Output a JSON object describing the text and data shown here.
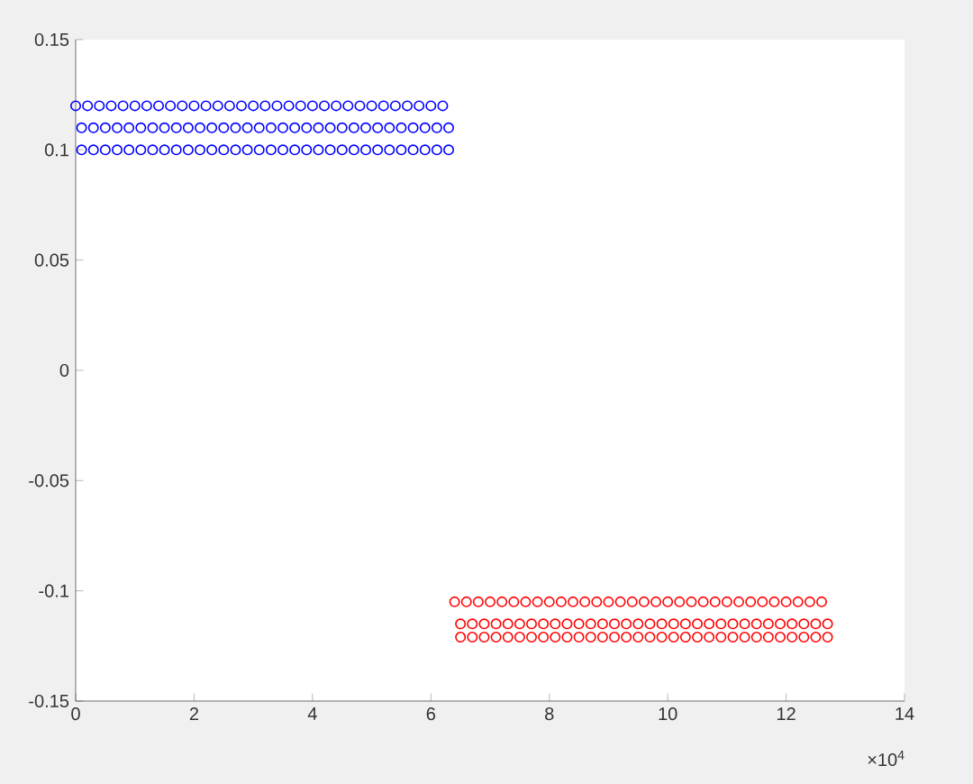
{
  "chart_data": {
    "type": "scatter",
    "marker": "circle",
    "xlim": [
      0,
      14
    ],
    "xticks": [
      0,
      2,
      4,
      6,
      8,
      10,
      12,
      14
    ],
    "ylim": [
      -0.15,
      0.15
    ],
    "yticks": [
      -0.15,
      -0.1,
      -0.05,
      0,
      0.05,
      0.1,
      0.15
    ],
    "annotations": [
      "×10$^{4}$"
    ],
    "series": [
      {
        "color": "#0000ff",
        "x": [
          0,
          0.2,
          0.4,
          0.6,
          0.8,
          1,
          1.2,
          1.4,
          1.6,
          1.8,
          2,
          2.2,
          2.4,
          2.6,
          2.8,
          3,
          3.2,
          3.4,
          3.6,
          3.8,
          4,
          4.2,
          4.4,
          4.6,
          4.8,
          5,
          5.2,
          5.4,
          5.6,
          5.8,
          6,
          6.2
        ],
        "values": [
          0.12,
          0.12,
          0.12,
          0.12,
          0.12,
          0.12,
          0.12,
          0.12,
          0.12,
          0.12,
          0.12,
          0.12,
          0.12,
          0.12,
          0.12,
          0.12,
          0.12,
          0.12,
          0.12,
          0.12,
          0.12,
          0.12,
          0.12,
          0.12,
          0.12,
          0.12,
          0.12,
          0.12,
          0.12,
          0.12,
          0.12,
          0.12
        ]
      },
      {
        "color": "#0000ff",
        "x": [
          0.1,
          0.3,
          0.5,
          0.7,
          0.9,
          1.1,
          1.3,
          1.5,
          1.7,
          1.9,
          2.1,
          2.3,
          2.5,
          2.7,
          2.9,
          3.1,
          3.3,
          3.5,
          3.7,
          3.9,
          4.1,
          4.3,
          4.5,
          4.7,
          4.9,
          5.1,
          5.3,
          5.5,
          5.7,
          5.9,
          6.1,
          6.3
        ],
        "values": [
          0.11,
          0.11,
          0.11,
          0.11,
          0.11,
          0.11,
          0.11,
          0.11,
          0.11,
          0.11,
          0.11,
          0.11,
          0.11,
          0.11,
          0.11,
          0.11,
          0.11,
          0.11,
          0.11,
          0.11,
          0.11,
          0.11,
          0.11,
          0.11,
          0.11,
          0.11,
          0.11,
          0.11,
          0.11,
          0.11,
          0.11,
          0.11
        ]
      },
      {
        "color": "#0000ff",
        "x": [
          0.1,
          0.3,
          0.5,
          0.7,
          0.9,
          1.1,
          1.3,
          1.5,
          1.7,
          1.9,
          2.1,
          2.3,
          2.5,
          2.7,
          2.9,
          3.1,
          3.3,
          3.5,
          3.7,
          3.9,
          4.1,
          4.3,
          4.5,
          4.7,
          4.9,
          5.1,
          5.3,
          5.5,
          5.7,
          5.9,
          6.1,
          6.3
        ],
        "values": [
          0.1,
          0.1,
          0.1,
          0.1,
          0.1,
          0.1,
          0.1,
          0.1,
          0.1,
          0.1,
          0.1,
          0.1,
          0.1,
          0.1,
          0.1,
          0.1,
          0.1,
          0.1,
          0.1,
          0.1,
          0.1,
          0.1,
          0.1,
          0.1,
          0.1,
          0.1,
          0.1,
          0.1,
          0.1,
          0.1,
          0.1,
          0.1
        ]
      },
      {
        "color": "#ff0000",
        "x": [
          6.4,
          6.6,
          6.8,
          7,
          7.2,
          7.4,
          7.6,
          7.8,
          8,
          8.2,
          8.4,
          8.6,
          8.8,
          9,
          9.2,
          9.4,
          9.6,
          9.8,
          10,
          10.2,
          10.4,
          10.6,
          10.8,
          11,
          11.2,
          11.4,
          11.6,
          11.8,
          12,
          12.2,
          12.4,
          12.6
        ],
        "values": [
          -0.105,
          -0.105,
          -0.105,
          -0.105,
          -0.105,
          -0.105,
          -0.105,
          -0.105,
          -0.105,
          -0.105,
          -0.105,
          -0.105,
          -0.105,
          -0.105,
          -0.105,
          -0.105,
          -0.105,
          -0.105,
          -0.105,
          -0.105,
          -0.105,
          -0.105,
          -0.105,
          -0.105,
          -0.105,
          -0.105,
          -0.105,
          -0.105,
          -0.105,
          -0.105,
          -0.105,
          -0.105
        ]
      },
      {
        "color": "#ff0000",
        "x": [
          6.5,
          6.7,
          6.9,
          7.1,
          7.3,
          7.5,
          7.7,
          7.9,
          8.1,
          8.3,
          8.5,
          8.7,
          8.9,
          9.1,
          9.3,
          9.5,
          9.7,
          9.9,
          10.1,
          10.3,
          10.5,
          10.7,
          10.9,
          11.1,
          11.3,
          11.5,
          11.7,
          11.9,
          12.1,
          12.3,
          12.5,
          12.7
        ],
        "values": [
          -0.115,
          -0.115,
          -0.115,
          -0.115,
          -0.115,
          -0.115,
          -0.115,
          -0.115,
          -0.115,
          -0.115,
          -0.115,
          -0.115,
          -0.115,
          -0.115,
          -0.115,
          -0.115,
          -0.115,
          -0.115,
          -0.115,
          -0.115,
          -0.115,
          -0.115,
          -0.115,
          -0.115,
          -0.115,
          -0.115,
          -0.115,
          -0.115,
          -0.115,
          -0.115,
          -0.115,
          -0.115
        ]
      },
      {
        "color": "#ff0000",
        "x": [
          6.5,
          6.7,
          6.9,
          7.1,
          7.3,
          7.5,
          7.7,
          7.9,
          8.1,
          8.3,
          8.5,
          8.7,
          8.9,
          9.1,
          9.3,
          9.5,
          9.7,
          9.9,
          10.1,
          10.3,
          10.5,
          10.7,
          10.9,
          11.1,
          11.3,
          11.5,
          11.7,
          11.9,
          12.1,
          12.3,
          12.5,
          12.7
        ],
        "values": [
          -0.121,
          -0.121,
          -0.121,
          -0.121,
          -0.121,
          -0.121,
          -0.121,
          -0.121,
          -0.121,
          -0.121,
          -0.121,
          -0.121,
          -0.121,
          -0.121,
          -0.121,
          -0.121,
          -0.121,
          -0.121,
          -0.121,
          -0.121,
          -0.121,
          -0.121,
          -0.121,
          -0.121,
          -0.121,
          -0.121,
          -0.121,
          -0.121,
          -0.121,
          -0.121,
          -0.121,
          -0.121
        ]
      }
    ]
  }
}
